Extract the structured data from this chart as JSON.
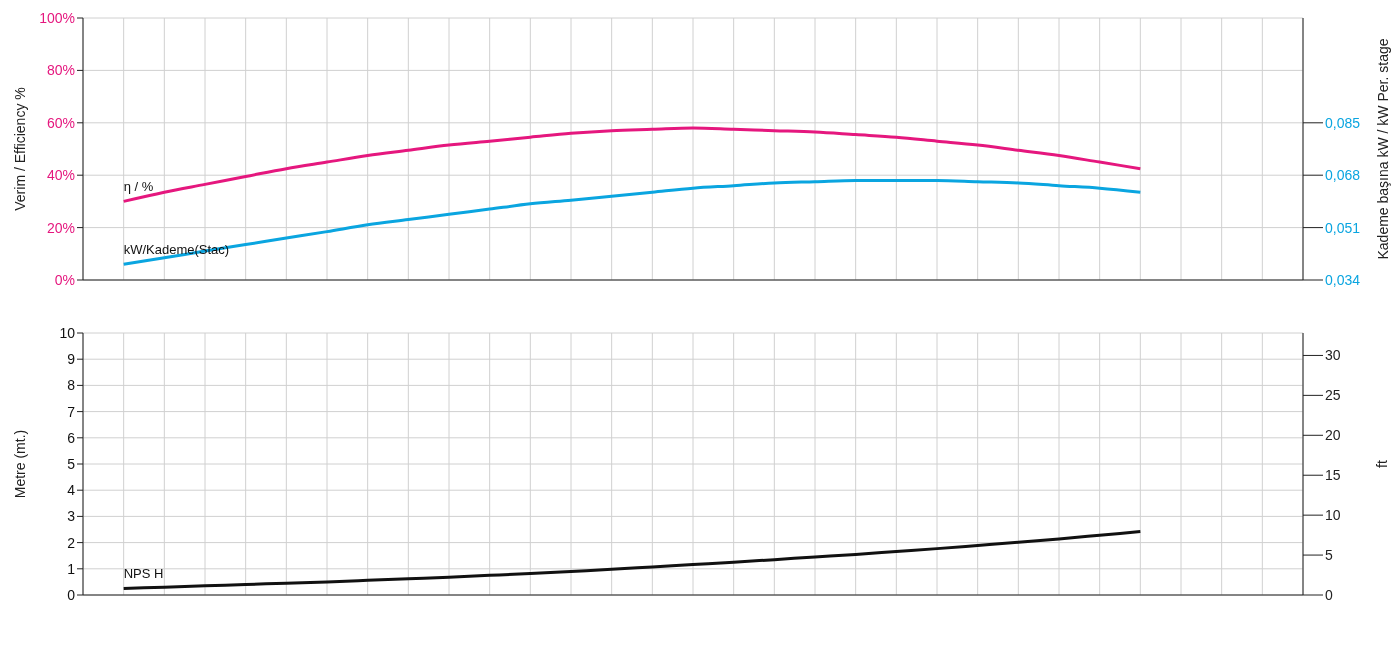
{
  "chart_data": [
    {
      "type": "line",
      "ylabel": "Verim / Efficiency %",
      "y2label": "Kademe başına kW / kW Per. stage",
      "categories": [
        null,
        null,
        null,
        null,
        null,
        null,
        null,
        null,
        null,
        null,
        null,
        null,
        null,
        null,
        null,
        null,
        null,
        null,
        null,
        null,
        null,
        null,
        null,
        null,
        null,
        null,
        null,
        null,
        null,
        null,
        null
      ],
      "series": [
        {
          "name": "η / %",
          "color": "#e5177e",
          "values": [
            null,
            30,
            33.5,
            36.5,
            39.5,
            42.5,
            45,
            47.5,
            49.5,
            51.5,
            53,
            54.5,
            56,
            57,
            57.5,
            58,
            57.5,
            57,
            56.5,
            55.5,
            54.5,
            53,
            51.5,
            49.5,
            47.5,
            45,
            42.5,
            null,
            null,
            null,
            null
          ]
        },
        {
          "name": "kW/Kademe(Stac)",
          "color": "#0aa5e0",
          "axis": "y2",
          "values": [
            null,
            0.0391,
            0.0412,
            0.0434,
            0.0455,
            0.0476,
            0.0497,
            0.0519,
            0.0536,
            0.0553,
            0.057,
            0.0587,
            0.0599,
            0.0612,
            0.0625,
            0.0638,
            0.0646,
            0.0655,
            0.0659,
            0.0663,
            0.0663,
            0.0663,
            0.0659,
            0.0655,
            0.0646,
            0.0638,
            0.0625,
            null,
            null,
            null,
            null
          ]
        }
      ],
      "ylim": [
        0,
        100
      ],
      "yticks": [
        {
          "value": 0,
          "label": "0%"
        },
        {
          "value": 20,
          "label": "20%"
        },
        {
          "value": 40,
          "label": "40%"
        },
        {
          "value": 60,
          "label": "60%"
        },
        {
          "value": 80,
          "label": "80%"
        },
        {
          "value": 100,
          "label": "100%"
        }
      ],
      "y2lim": [
        0.034,
        0.119
      ],
      "y2ticks": [
        {
          "value": 0.034,
          "label": "0,034"
        },
        {
          "value": 0.051,
          "label": "0,051"
        },
        {
          "value": 0.068,
          "label": "0,068"
        },
        {
          "value": 0.085,
          "label": "0,085"
        }
      ],
      "grid": true,
      "legend": false,
      "marker": "none",
      "line_style": "solid"
    },
    {
      "type": "line",
      "ylabel": "Metre (mt.)",
      "y2label": "ft",
      "categories": [
        null,
        null,
        null,
        null,
        null,
        null,
        null,
        null,
        null,
        null,
        null,
        null,
        null,
        null,
        null,
        null,
        null,
        null,
        null,
        null,
        null,
        null,
        null,
        null,
        null,
        null,
        null,
        null,
        null,
        null,
        null
      ],
      "series": [
        {
          "name": "NPS H",
          "color": "#111111",
          "values": [
            null,
            0.25,
            0.3,
            0.35,
            0.4,
            0.45,
            0.5,
            0.56,
            0.62,
            0.68,
            0.75,
            0.82,
            0.9,
            0.98,
            1.07,
            1.16,
            1.25,
            1.35,
            1.45,
            1.55,
            1.66,
            1.77,
            1.89,
            2.01,
            2.14,
            2.28,
            2.42,
            null,
            null,
            null,
            null
          ]
        }
      ],
      "ylim": [
        0,
        10
      ],
      "yticks": [
        0,
        1,
        2,
        3,
        4,
        5,
        6,
        7,
        8,
        9,
        10
      ],
      "y2lim": [
        0,
        32.81
      ],
      "y2ticks": [
        0,
        5,
        10,
        15,
        20,
        25,
        30
      ],
      "grid": true,
      "legend": false,
      "marker": "none",
      "line_style": "solid"
    }
  ]
}
